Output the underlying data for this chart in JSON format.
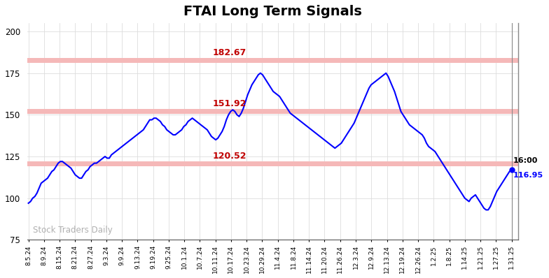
{
  "title": "FTAI Long Term Signals",
  "title_fontsize": 14,
  "line_color": "blue",
  "line_width": 1.5,
  "hlines": [
    {
      "y": 182.67,
      "label": "182.67",
      "color": "#c00000"
    },
    {
      "y": 151.92,
      "label": "151.92",
      "color": "#c00000"
    },
    {
      "y": 120.52,
      "label": "120.52",
      "color": "#c00000"
    }
  ],
  "hline_color": "#f5b8b8",
  "hline_alpha": 1.0,
  "hline_lw": 5,
  "annotation_last": {
    "time": "16:00",
    "price": "116.95"
  },
  "watermark": "Stock Traders Daily",
  "watermark_color": "#b0b0b0",
  "ylim": [
    75,
    205
  ],
  "yticks": [
    75,
    100,
    125,
    150,
    175,
    200
  ],
  "background_color": "#ffffff",
  "grid_color": "#dddddd",
  "right_spine_color": "#888888",
  "price_data": [
    97,
    98,
    100,
    101,
    103,
    106,
    109,
    110,
    111,
    112,
    114,
    116,
    117,
    119,
    121,
    122,
    122,
    121,
    120,
    119,
    118,
    116,
    114,
    113,
    112,
    112,
    114,
    116,
    117,
    119,
    120,
    121,
    121,
    122,
    123,
    124,
    125,
    124,
    124,
    126,
    127,
    128,
    129,
    130,
    131,
    132,
    133,
    134,
    135,
    136,
    137,
    138,
    139,
    140,
    141,
    143,
    145,
    147,
    147,
    148,
    148,
    147,
    146,
    144,
    143,
    141,
    140,
    139,
    138,
    138,
    139,
    140,
    141,
    143,
    144,
    146,
    147,
    148,
    147,
    146,
    145,
    144,
    143,
    142,
    141,
    139,
    137,
    136,
    135,
    136,
    138,
    140,
    143,
    147,
    150,
    152,
    153,
    152,
    150,
    149,
    151,
    154,
    158,
    162,
    165,
    168,
    170,
    172,
    174,
    175,
    174,
    172,
    170,
    168,
    166,
    164,
    163,
    162,
    161,
    159,
    157,
    155,
    153,
    151,
    150,
    149,
    148,
    147,
    146,
    145,
    144,
    143,
    142,
    141,
    140,
    139,
    138,
    137,
    136,
    135,
    134,
    133,
    132,
    131,
    130,
    131,
    132,
    133,
    135,
    137,
    139,
    141,
    143,
    145,
    148,
    151,
    154,
    157,
    160,
    163,
    166,
    168,
    169,
    170,
    171,
    172,
    173,
    174,
    175,
    173,
    170,
    167,
    164,
    160,
    156,
    152,
    150,
    148,
    146,
    144,
    143,
    142,
    141,
    140,
    139,
    138,
    136,
    133,
    131,
    130,
    129,
    128,
    126,
    124,
    122,
    120,
    118,
    116,
    114,
    112,
    110,
    108,
    106,
    104,
    102,
    100,
    99,
    98,
    100,
    101,
    102,
    100,
    98,
    96,
    94,
    93,
    93,
    95,
    98,
    101,
    104,
    106,
    108,
    110,
    112,
    114,
    116,
    116.95
  ],
  "x_tick_labels": [
    "8.5.24",
    "8.9.24",
    "8.15.24",
    "8.21.24",
    "8.27.24",
    "9.3.24",
    "9.9.24",
    "9.13.24",
    "9.19.24",
    "9.25.24",
    "10.1.24",
    "10.7.24",
    "10.11.24",
    "10.17.24",
    "10.23.24",
    "10.29.24",
    "11.4.24",
    "11.8.24",
    "11.14.24",
    "11.20.24",
    "11.26.24",
    "12.3.24",
    "12.9.24",
    "12.13.24",
    "12.19.24",
    "12.26.24",
    "1.2.25",
    "1.8.25",
    "1.14.25",
    "1.21.25",
    "1.27.25",
    "1.31.25"
  ]
}
